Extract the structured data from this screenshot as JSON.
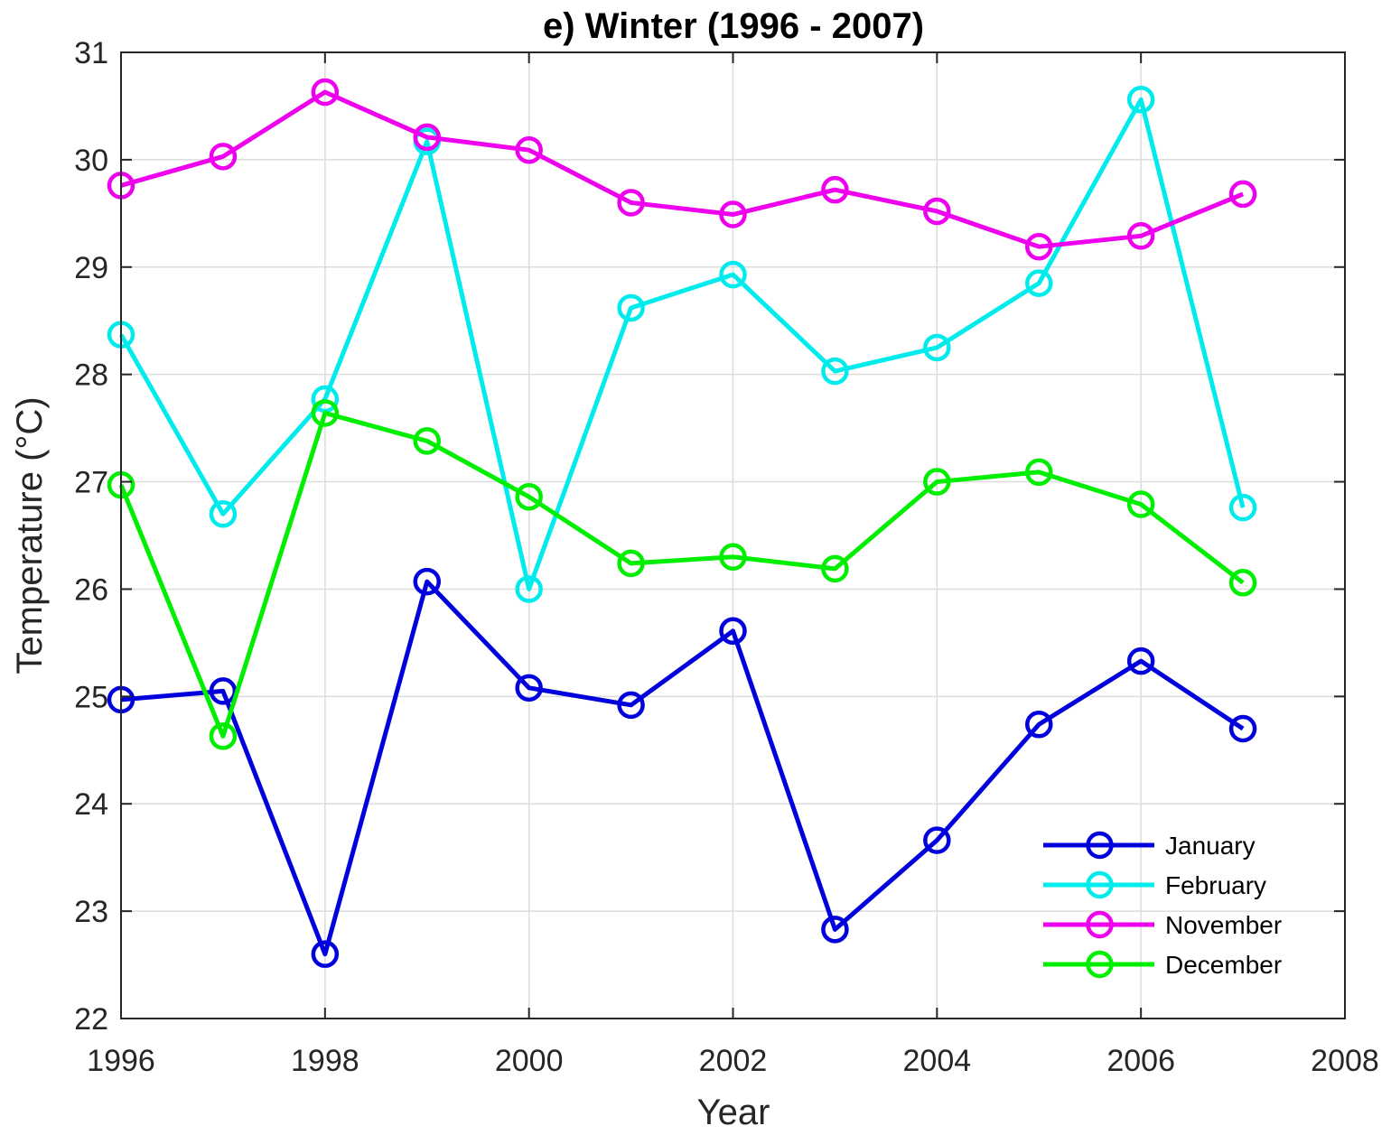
{
  "chart_data": {
    "type": "line",
    "title": "e) Winter (1996 - 2007)",
    "xlabel": "Year",
    "ylabel": "Temperature (°C)",
    "xlim": [
      1996,
      2008
    ],
    "ylim": [
      22,
      31
    ],
    "xticks": [
      1996,
      1998,
      2000,
      2002,
      2004,
      2006,
      2008
    ],
    "yticks": [
      22,
      23,
      24,
      25,
      26,
      27,
      28,
      29,
      30,
      31
    ],
    "grid": true,
    "legend_position": "bottom-right",
    "x": [
      1996,
      1997,
      1998,
      1999,
      2000,
      2001,
      2002,
      2003,
      2004,
      2005,
      2006,
      2007
    ],
    "series": [
      {
        "name": "January",
        "color": "#0000dd",
        "values": [
          24.97,
          25.05,
          22.6,
          26.07,
          25.08,
          24.92,
          25.61,
          22.83,
          23.66,
          24.74,
          25.33,
          24.7
        ]
      },
      {
        "name": "February",
        "color": "#00ecec",
        "values": [
          28.37,
          26.7,
          27.77,
          30.17,
          26.0,
          28.62,
          28.93,
          28.03,
          28.25,
          28.85,
          30.56,
          26.76
        ]
      },
      {
        "name": "November",
        "color": "#ee00ee",
        "values": [
          29.76,
          30.03,
          30.63,
          30.21,
          30.09,
          29.6,
          29.49,
          29.72,
          29.52,
          29.19,
          29.29,
          29.68
        ]
      },
      {
        "name": "December",
        "color": "#00ee00",
        "values": [
          26.97,
          24.63,
          27.64,
          27.38,
          26.86,
          26.24,
          26.3,
          26.19,
          27.0,
          27.09,
          26.79,
          26.06
        ]
      }
    ]
  }
}
